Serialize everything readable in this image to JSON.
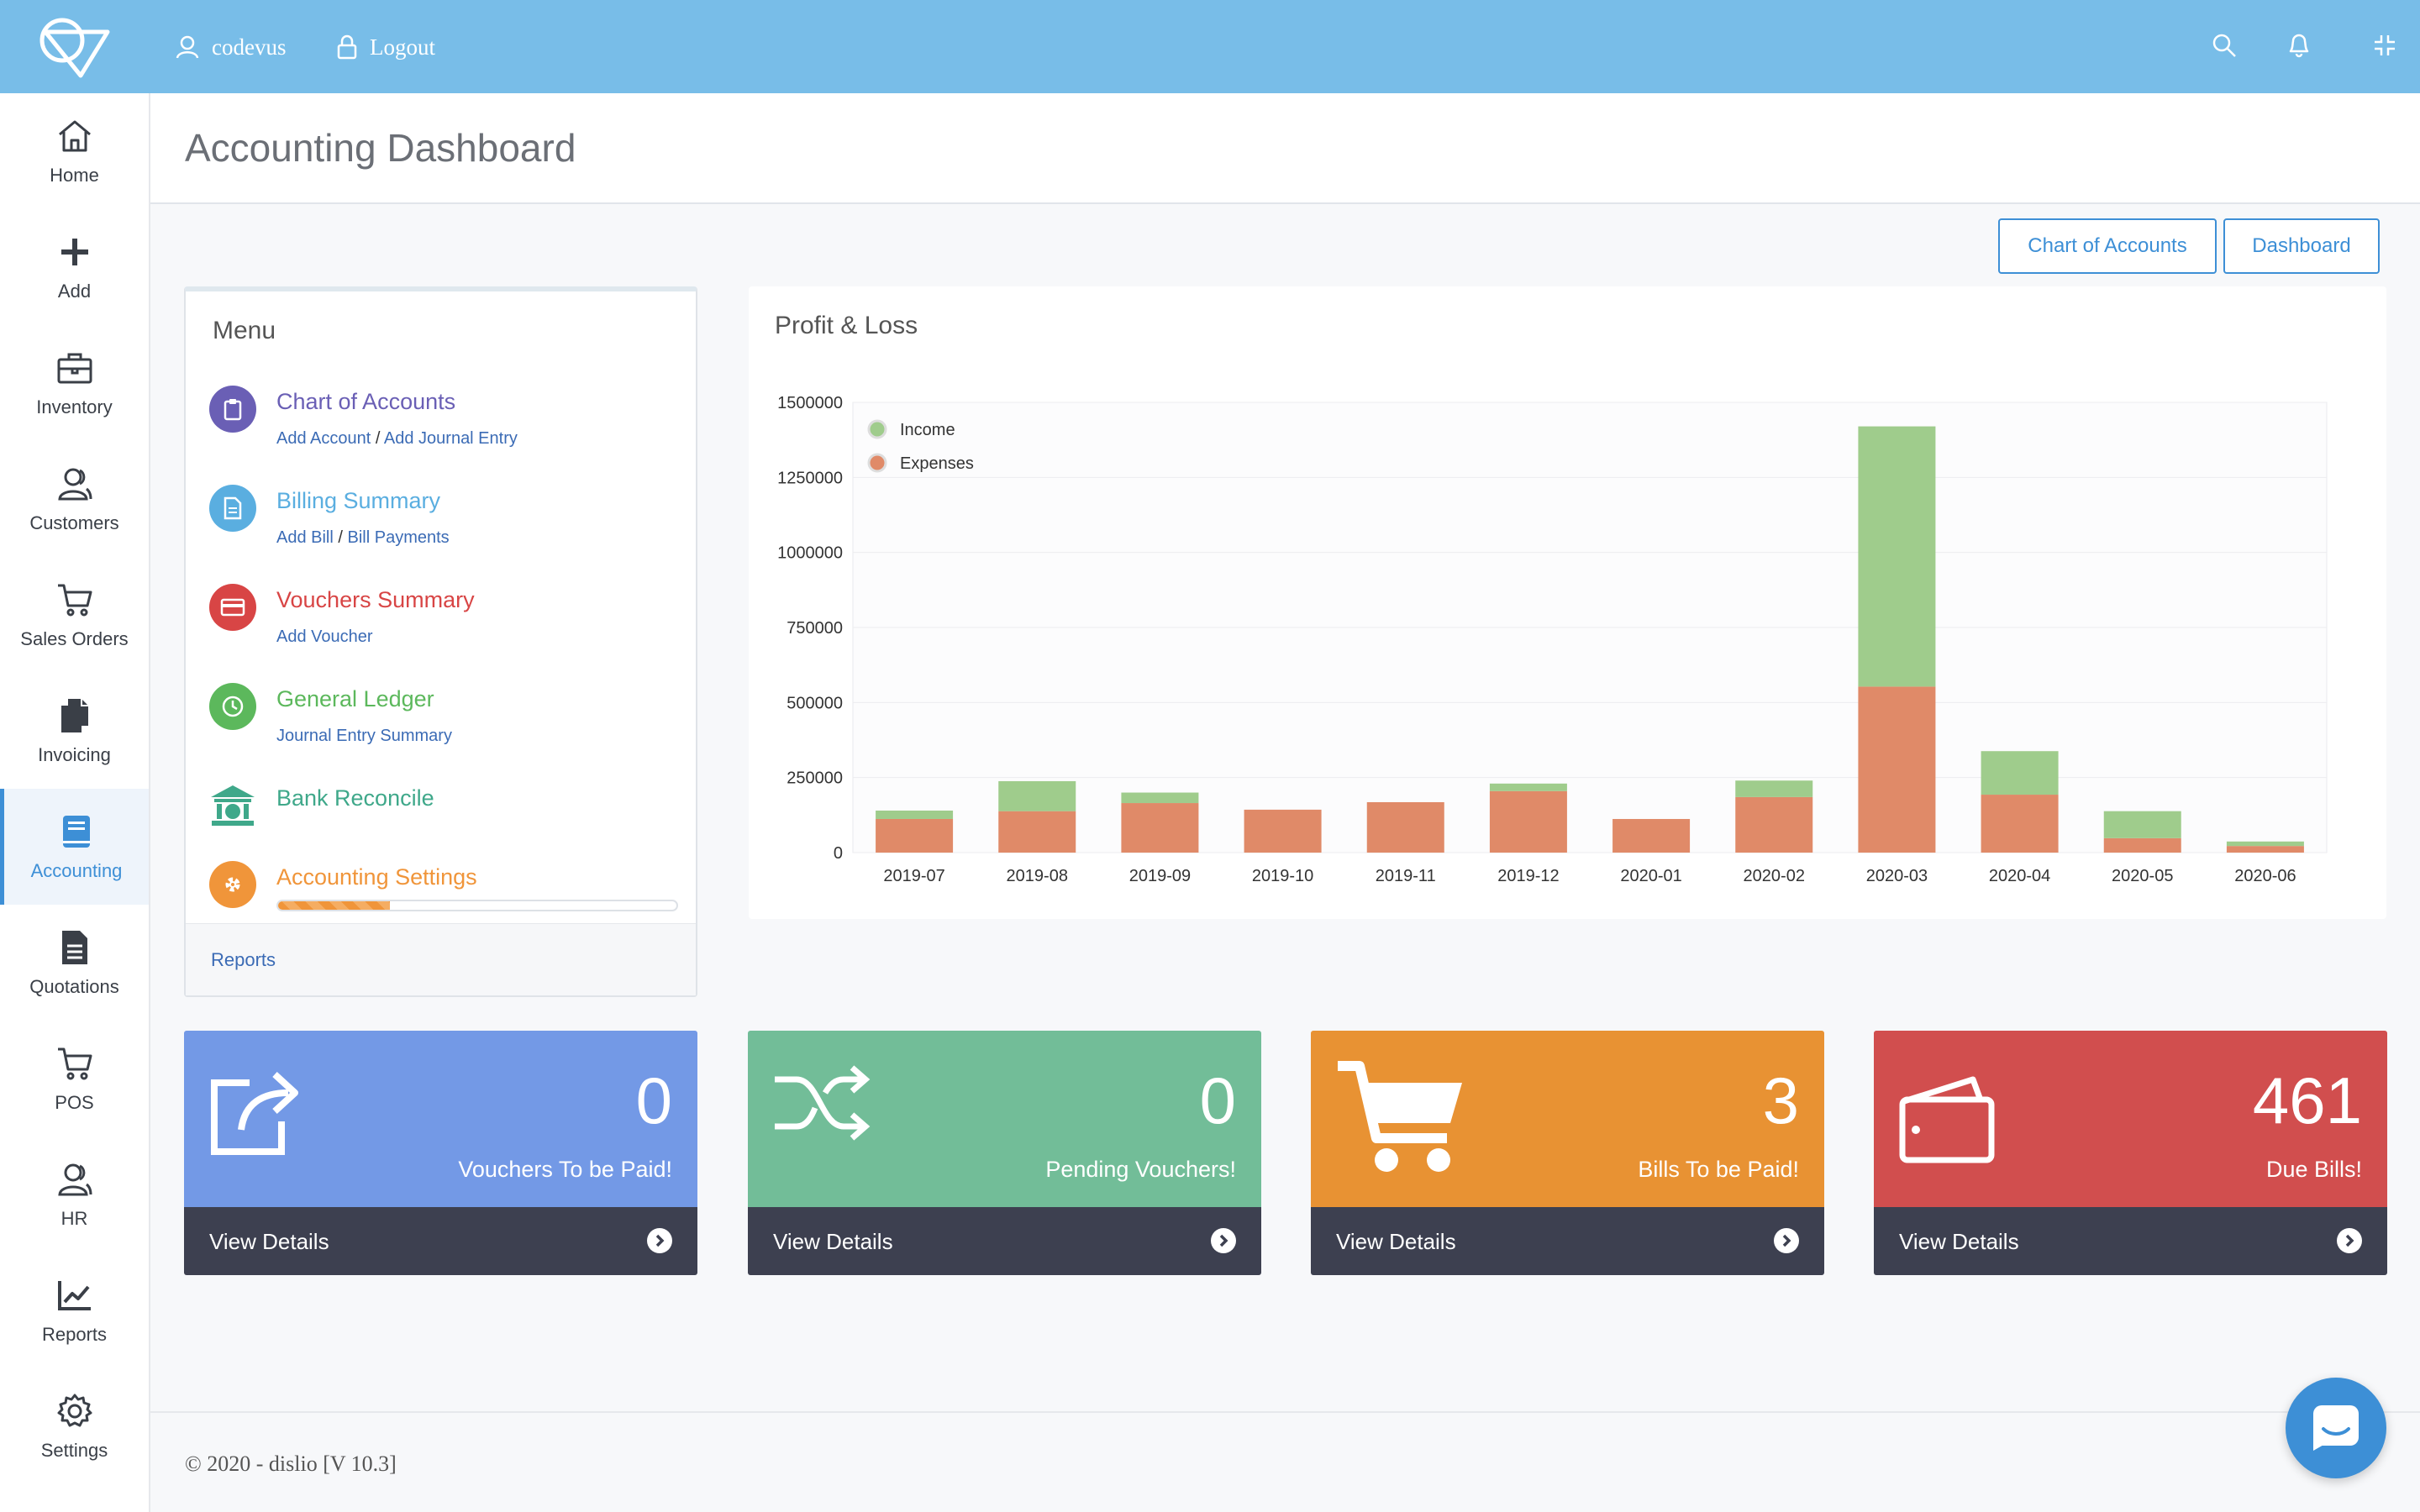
{
  "topbar": {
    "user_label": "codevus",
    "logout_label": "Logout",
    "icons": [
      "search-icon",
      "bell-icon",
      "compress-icon"
    ]
  },
  "sidebar": {
    "items": [
      {
        "label": "Home",
        "icon": "home-icon"
      },
      {
        "label": "Add",
        "icon": "plus-icon"
      },
      {
        "label": "Inventory",
        "icon": "briefcase-icon"
      },
      {
        "label": "Customers",
        "icon": "users-icon"
      },
      {
        "label": "Sales Orders",
        "icon": "cart-icon"
      },
      {
        "label": "Invoicing",
        "icon": "copy-icon"
      },
      {
        "label": "Accounting",
        "icon": "book-icon",
        "active": true
      },
      {
        "label": "Quotations",
        "icon": "file-icon"
      },
      {
        "label": "POS",
        "icon": "cart-icon"
      },
      {
        "label": "HR",
        "icon": "users-icon"
      },
      {
        "label": "Reports",
        "icon": "chart-icon"
      },
      {
        "label": "Settings",
        "icon": "gear-icon"
      }
    ]
  },
  "page": {
    "title": "Accounting Dashboard",
    "btn_chart_of_accounts": "Chart of Accounts",
    "btn_dashboard": "Dashboard"
  },
  "menu": {
    "title": "Menu",
    "items": [
      {
        "name": "Chart of Accounts",
        "sub1": "Add Account",
        "sub2": "Add Journal Entry",
        "color": "#6a5fb5"
      },
      {
        "name": "Billing Summary",
        "sub1": "Add Bill",
        "sub2": "Bill Payments",
        "color": "#5aaee0"
      },
      {
        "name": "Vouchers Summary",
        "sub1": "Add Voucher",
        "color": "#d84545"
      },
      {
        "name": "General Ledger",
        "sub1": "Journal Entry Summary",
        "color": "#5cb85c"
      },
      {
        "name": "Bank Reconcile",
        "color": "#3fa88a"
      },
      {
        "name": "Accounting Settings",
        "color": "#f0953a"
      }
    ],
    "sep": "/",
    "settings_progress": 0.28,
    "footer_link": "Reports"
  },
  "chart_title": "Profit & Loss",
  "chart_data": {
    "type": "bar",
    "stacked": true,
    "categories": [
      "2019-07",
      "2019-08",
      "2019-09",
      "2019-10",
      "2019-11",
      "2019-12",
      "2020-01",
      "2020-02",
      "2020-03",
      "2020-04",
      "2020-05",
      "2020-06"
    ],
    "series": [
      {
        "name": "Expenses",
        "color": "#e08a68",
        "values": [
          112000,
          138000,
          165000,
          143000,
          168000,
          205000,
          112000,
          185000,
          553000,
          193000,
          48000,
          22000
        ]
      },
      {
        "name": "Income",
        "color": "#9fcc8c",
        "values": [
          28000,
          100000,
          35000,
          0,
          0,
          25000,
          0,
          55000,
          867000,
          145000,
          90000,
          15000
        ]
      }
    ],
    "yticks": [
      "0",
      "250000",
      "500000",
      "750000",
      "1000000",
      "1250000",
      "1500000"
    ],
    "ylim": [
      0,
      1500000
    ],
    "legend": [
      "Income",
      "Expenses"
    ],
    "legend_position": "top-left",
    "grid": true
  },
  "stats": [
    {
      "value": "0",
      "label": "Vouchers To be Paid!",
      "link": "View Details",
      "color": "#7399e6",
      "icon": "share-icon"
    },
    {
      "value": "0",
      "label": "Pending Vouchers!",
      "link": "View Details",
      "color": "#72bd98",
      "icon": "shuffle-icon"
    },
    {
      "value": "3",
      "label": "Bills To be Paid!",
      "link": "View Details",
      "color": "#e89233",
      "icon": "cart-icon"
    },
    {
      "value": "461",
      "label": "Due Bills!",
      "link": "View Details",
      "color": "#d14e4e",
      "icon": "wallet-icon"
    }
  ],
  "footer": "© 2020 - dislio [V 10.3]"
}
